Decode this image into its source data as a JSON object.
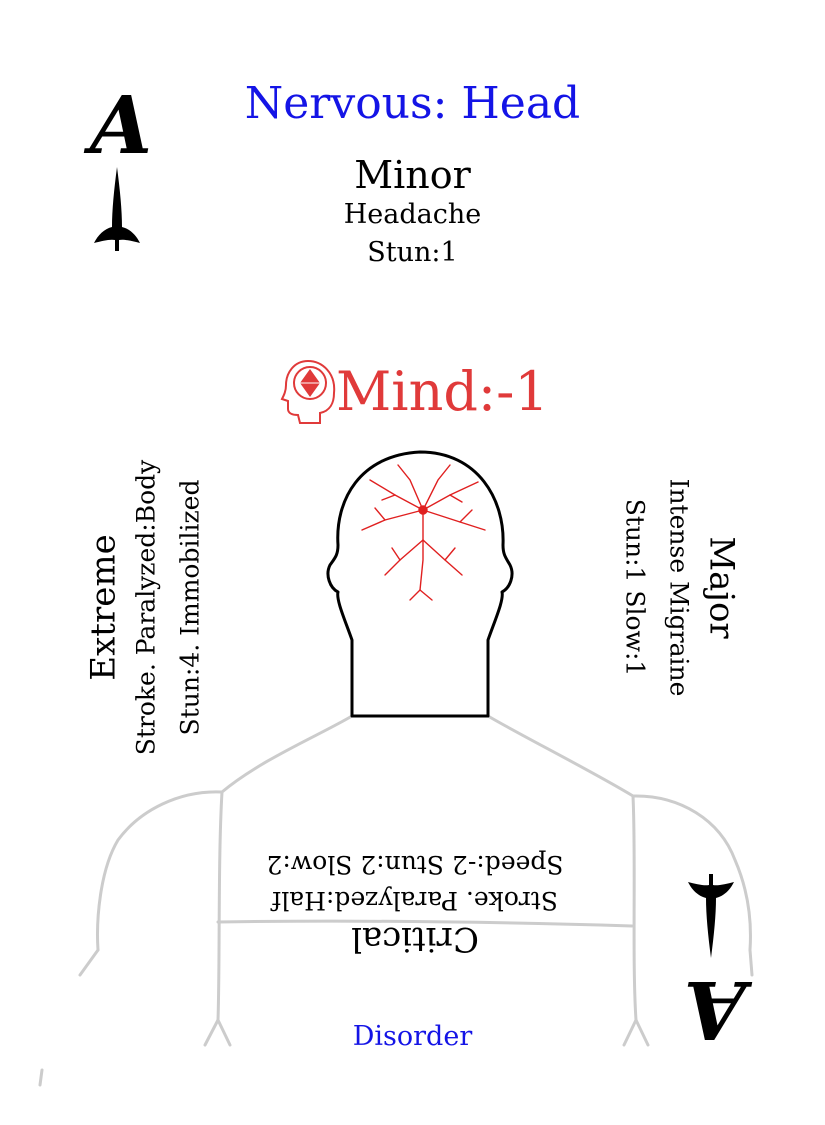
{
  "card": {
    "title": "Nervous: Head",
    "corner_rank": "A",
    "minor": {
      "heading": "Minor",
      "line1": "Headache",
      "line2": "Stun:1"
    },
    "mind": {
      "label": "Mind:-1"
    },
    "extreme": {
      "heading": "Extreme",
      "line1": "Stroke. Paralyzed:Body",
      "line2": "Stun:4. Immobilized"
    },
    "major": {
      "heading": "Major",
      "line1": "Intense Migraine",
      "line2": "Stun:1 Slow:1"
    },
    "critical": {
      "heading": "Critical",
      "line1": "Stroke. Paralyzed:Half",
      "line2": "Speed:-2 Stun:2 Slow:2"
    },
    "category": "Disorder"
  },
  "colors": {
    "title": "#1414e6",
    "mind": "#e03a3a",
    "category": "#1414e6",
    "body_outline": "#cccccc",
    "head_outline": "#000000",
    "veins": "#e02020"
  },
  "icons": {
    "corner_suit": "dagger-icon",
    "mind_icon": "head-gem-icon"
  }
}
